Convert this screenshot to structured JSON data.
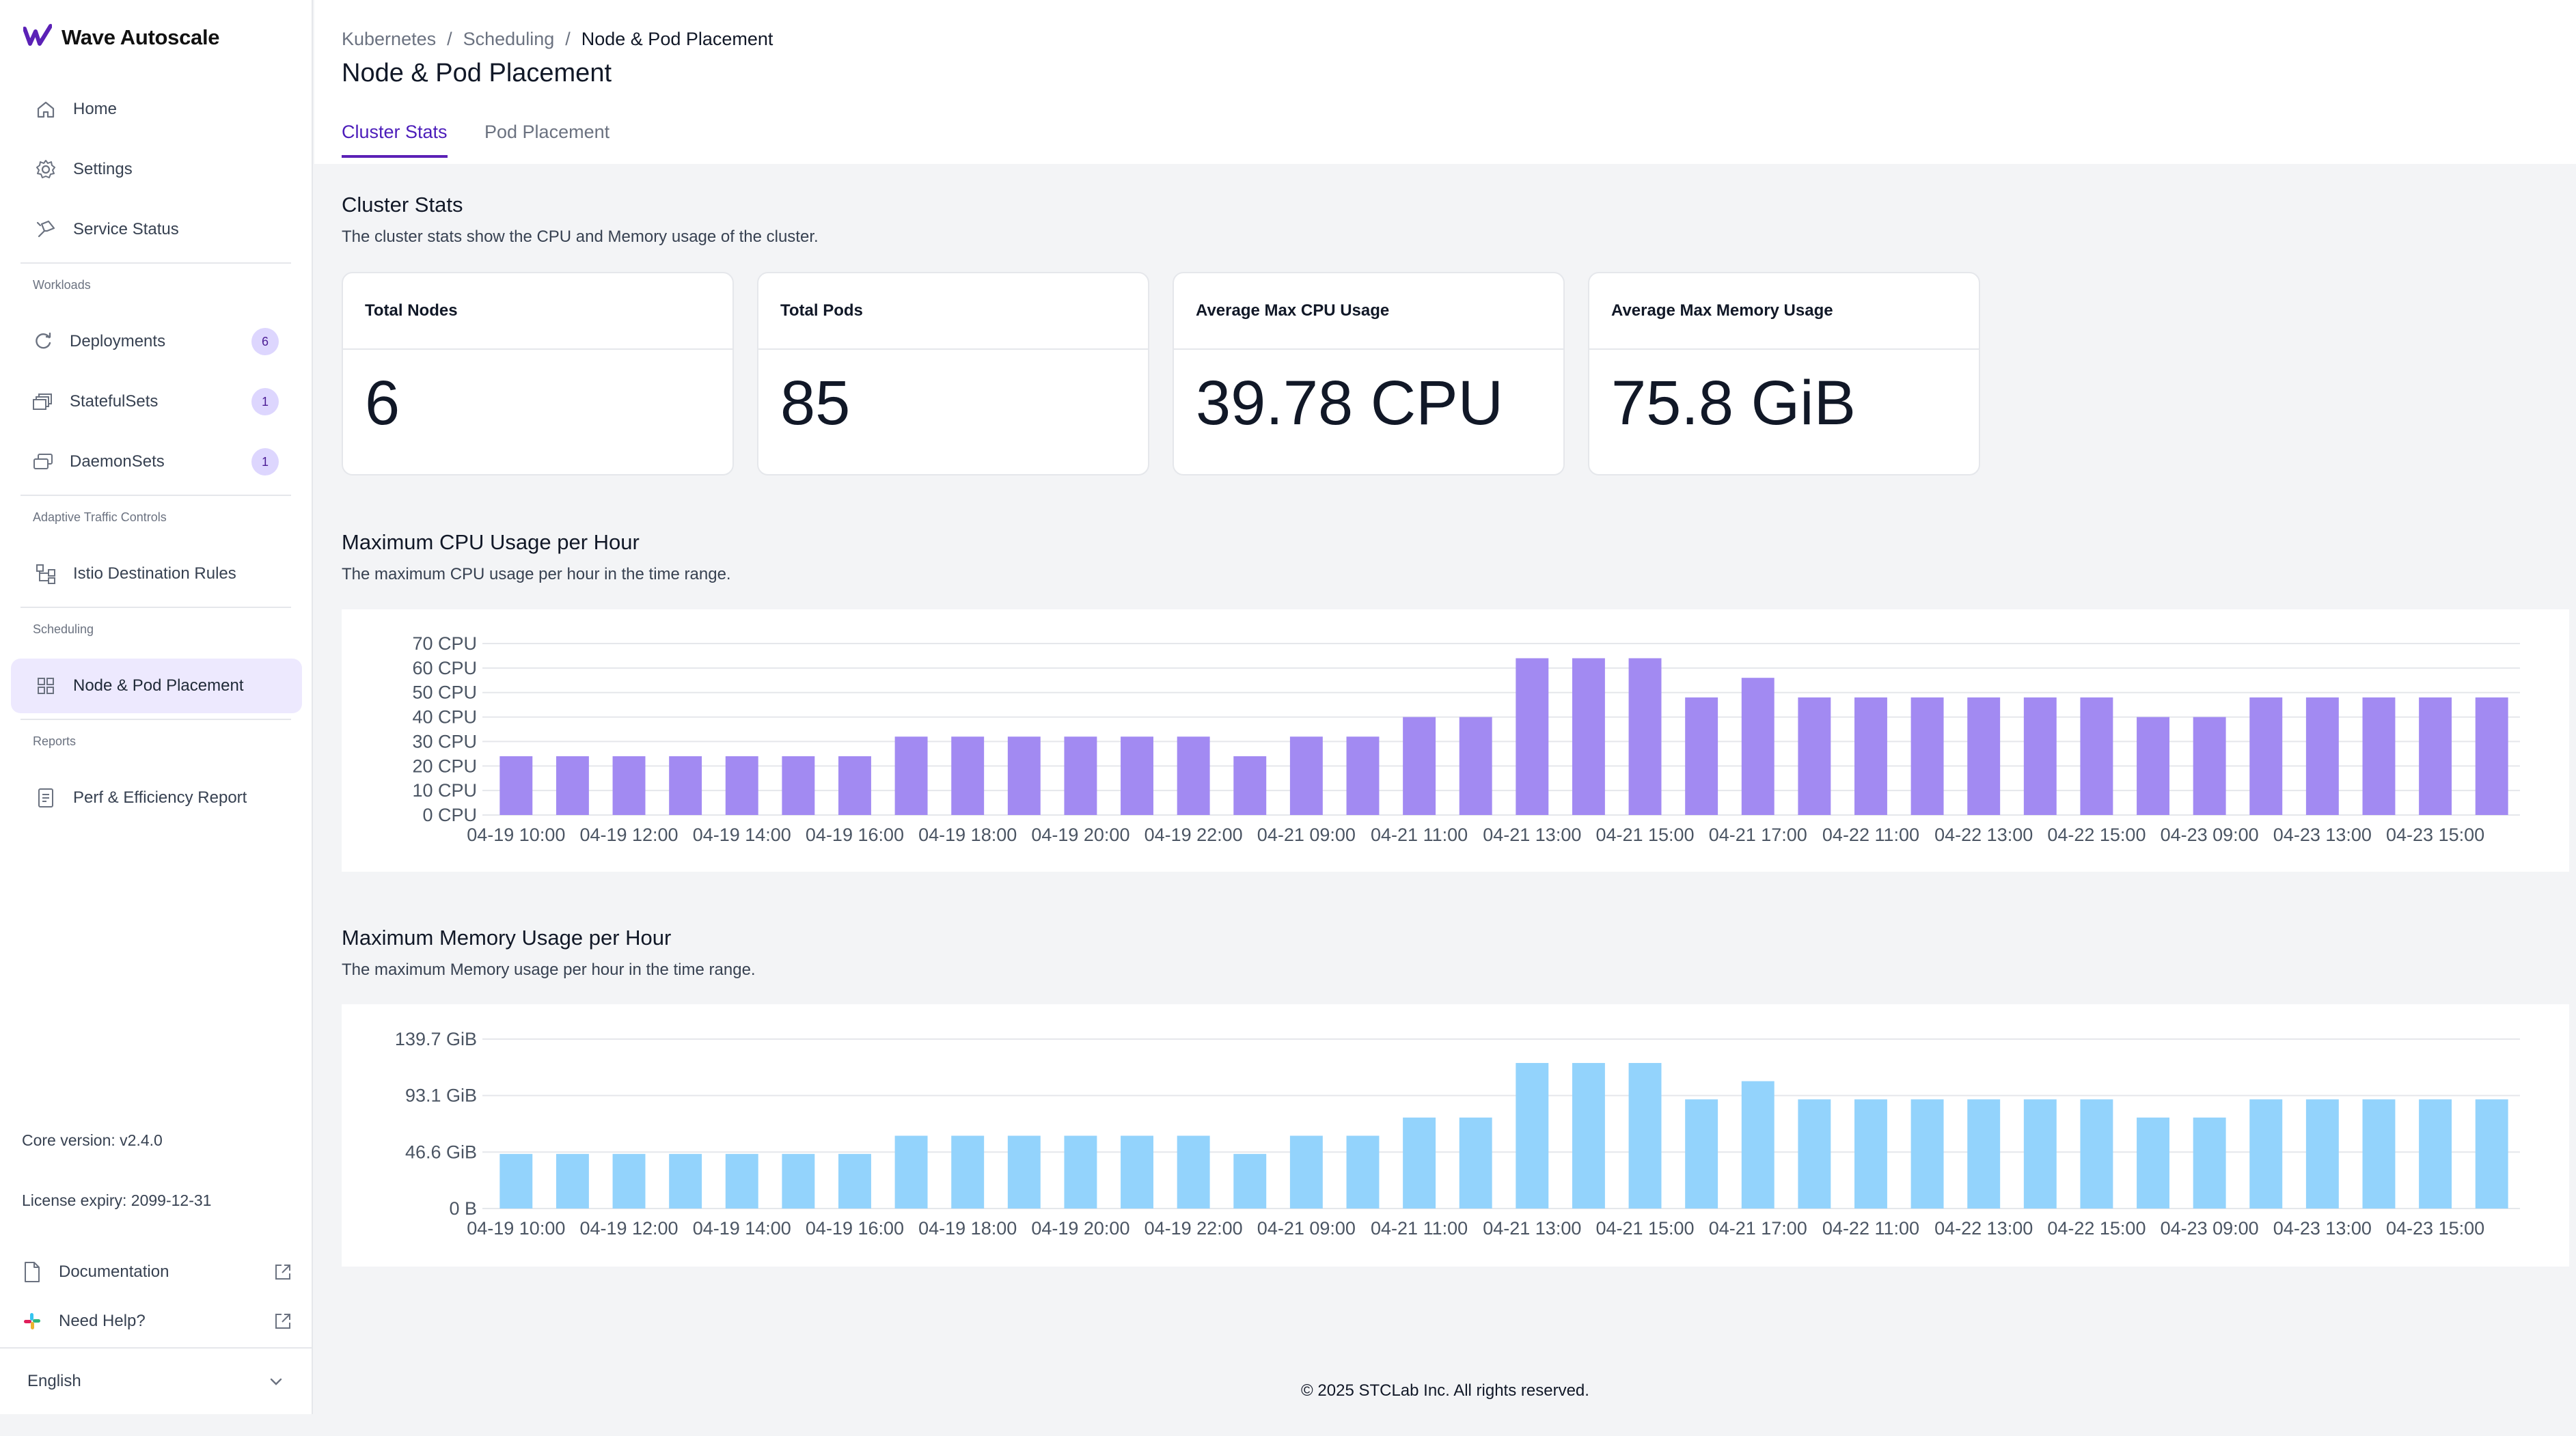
{
  "app": {
    "name": "Wave Autoscale"
  },
  "sidebar": {
    "top_items": [
      {
        "label": "Home",
        "icon": "home-icon"
      },
      {
        "label": "Settings",
        "icon": "gear-icon"
      },
      {
        "label": "Service Status",
        "icon": "status-icon"
      }
    ],
    "workloads_label": "Workloads",
    "workloads": [
      {
        "label": "Deployments",
        "count": "6",
        "icon": "deployments-icon"
      },
      {
        "label": "StatefulSets",
        "count": "1",
        "icon": "statefulsets-icon"
      },
      {
        "label": "DaemonSets",
        "count": "1",
        "icon": "daemonsets-icon"
      }
    ],
    "traffic_label": "Adaptive Traffic Controls",
    "traffic": [
      {
        "label": "Istio Destination Rules",
        "icon": "destination-rules-icon"
      }
    ],
    "scheduling_label": "Scheduling",
    "scheduling": [
      {
        "label": "Node & Pod Placement",
        "icon": "grid-icon",
        "active": true
      }
    ],
    "reports_label": "Reports",
    "reports": [
      {
        "label": "Perf & Efficiency Report",
        "icon": "report-icon"
      }
    ],
    "core_version": "Core version: v2.4.0",
    "license_expiry": "License expiry: 2099-12-31",
    "documentation": "Documentation",
    "help": "Need Help?",
    "language": "English"
  },
  "header": {
    "breadcrumb": [
      "Kubernetes",
      "Scheduling",
      "Node & Pod Placement"
    ],
    "title": "Node & Pod Placement",
    "tabs": [
      {
        "label": "Cluster Stats",
        "active": true
      },
      {
        "label": "Pod Placement",
        "active": false
      }
    ]
  },
  "cluster_stats": {
    "title": "Cluster Stats",
    "description": "The cluster stats show the CPU and Memory usage of the cluster.",
    "cards": [
      {
        "label": "Total Nodes",
        "value": "6"
      },
      {
        "label": "Total Pods",
        "value": "85"
      },
      {
        "label": "Average Max CPU Usage",
        "value": "39.78 CPU"
      },
      {
        "label": "Average Max Memory Usage",
        "value": "75.8 GiB"
      }
    ]
  },
  "cpu_section": {
    "title": "Maximum CPU Usage per Hour",
    "description": "The maximum CPU usage per hour in the time range."
  },
  "memory_section": {
    "title": "Maximum Memory Usage per Hour",
    "description": "The maximum Memory usage per hour in the time range."
  },
  "footer": "© 2025 STCLab Inc. All rights reserved.",
  "colors": {
    "accent": "#5b21b6",
    "cpu_bar": "#a28af2",
    "mem_bar": "#93d3fc"
  },
  "chart_data": [
    {
      "type": "bar",
      "unit": "CPU",
      "y_ticks": [
        "0 CPU",
        "10 CPU",
        "20 CPU",
        "30 CPU",
        "40 CPU",
        "50 CPU",
        "60 CPU",
        "70 CPU"
      ],
      "ylim": [
        0,
        70
      ],
      "x_tick_labels": [
        "04-19 10:00",
        "04-19 12:00",
        "04-19 14:00",
        "04-19 16:00",
        "04-19 18:00",
        "04-19 20:00",
        "04-19 22:00",
        "04-21 09:00",
        "04-21 11:00",
        "04-21 13:00",
        "04-21 15:00",
        "04-21 17:00",
        "04-22 11:00",
        "04-22 13:00",
        "04-22 15:00",
        "04-23 09:00",
        "04-23 13:00",
        "04-23 15:00"
      ],
      "values": [
        24,
        24,
        24,
        24,
        24,
        24,
        24,
        32,
        32,
        32,
        32,
        32,
        32,
        24,
        32,
        32,
        40,
        40,
        64,
        64,
        64,
        48,
        56,
        48,
        48,
        48,
        48,
        48,
        48,
        40,
        40,
        48,
        48,
        48,
        48,
        48
      ],
      "grid": true
    },
    {
      "type": "bar",
      "unit": "GiB",
      "y_ticks": [
        "0 B",
        "46.6 GiB",
        "93.1 GiB",
        "139.7 GiB"
      ],
      "ylim": [
        0,
        139.7
      ],
      "x_tick_labels": [
        "04-19 10:00",
        "04-19 12:00",
        "04-19 14:00",
        "04-19 16:00",
        "04-19 18:00",
        "04-19 20:00",
        "04-19 22:00",
        "04-21 09:00",
        "04-21 11:00",
        "04-21 13:00",
        "04-21 15:00",
        "04-21 17:00",
        "04-22 11:00",
        "04-22 13:00",
        "04-22 15:00",
        "04-23 09:00",
        "04-23 13:00",
        "04-23 15:00"
      ],
      "values": [
        45,
        45,
        45,
        45,
        45,
        45,
        45,
        60,
        60,
        60,
        60,
        60,
        60,
        45,
        60,
        60,
        75,
        75,
        120,
        120,
        120,
        90,
        105,
        90,
        90,
        90,
        90,
        90,
        90,
        75,
        75,
        90,
        90,
        90,
        90,
        90
      ],
      "grid": true
    }
  ]
}
